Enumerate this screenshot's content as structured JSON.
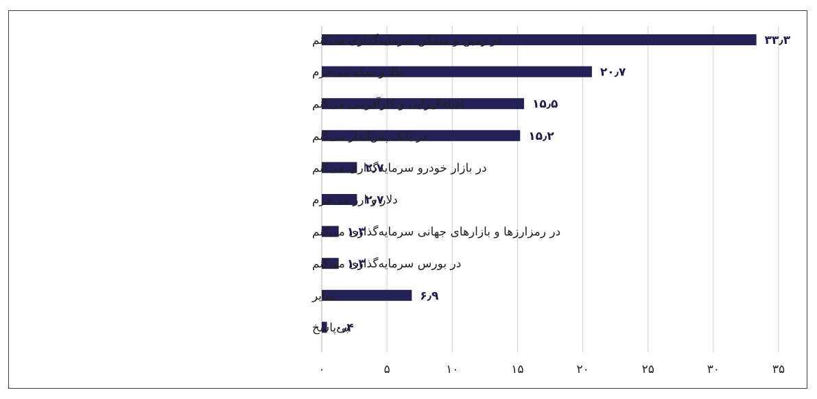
{
  "chart_data": {
    "type": "bar",
    "orientation": "horizontal",
    "categories": [
      "در زمین و مسکن سرمایه‌گذاری می‌کنم",
      "طلا و سکه می‌خرم",
      "اشتغال‌زایی و کارآفرینی می‌کنم",
      "در بانک پس‌انداز می‌کنم",
      "در بازار خودرو سرمایه‌گذاری می‌کنم",
      "دلار و ارز می‌خرم",
      "در رمزارزها و بازارهای جهانی سرمایه‌گذاری می‌کنم",
      "در بورس سرمایه‌گذاری می‌کنم",
      "سایر",
      "بی‌پاسخ"
    ],
    "values": [
      33.3,
      20.7,
      15.5,
      15.2,
      2.7,
      2.7,
      1.3,
      1.3,
      6.9,
      0.4
    ],
    "value_labels": [
      "۳۳٫۳",
      "۲۰٫۷",
      "۱۵٫۵",
      "۱۵٫۲",
      "۲٫۷",
      "۲٫۷",
      "۱٫۳",
      "۱٫۳",
      "۶٫۹",
      "۰٫۴"
    ],
    "xlim": [
      0,
      35
    ],
    "x_ticks": [
      0,
      5,
      10,
      15,
      20,
      25,
      30,
      35
    ],
    "x_tick_labels": [
      "۰",
      "۵",
      "۱۰",
      "۱۵",
      "۲۰",
      "۲۵",
      "۳۰",
      "۳۵"
    ],
    "grid": true,
    "bar_color": "#232155",
    "title": "",
    "xlabel": "",
    "ylabel": ""
  }
}
